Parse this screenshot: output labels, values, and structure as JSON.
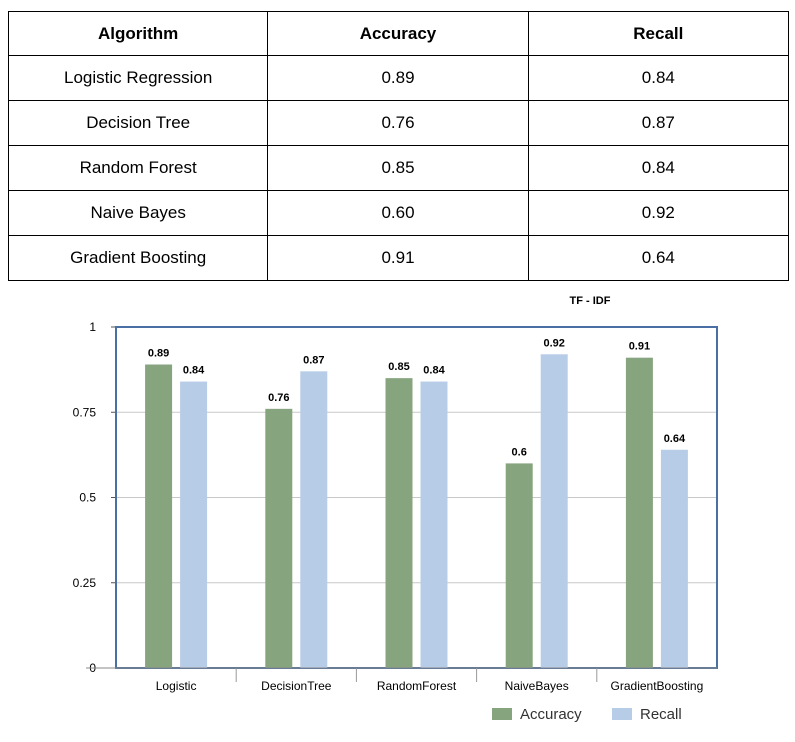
{
  "table": {
    "headers": [
      "Algorithm",
      "Accuracy",
      "Recall"
    ],
    "rows": [
      [
        "Logistic Regression",
        "0.89",
        "0.84"
      ],
      [
        "Decision Tree",
        "0.76",
        "0.87"
      ],
      [
        "Random Forest",
        "0.85",
        "0.84"
      ],
      [
        "Naive Bayes",
        "0.60",
        "0.92"
      ],
      [
        "Gradient Boosting",
        "0.91",
        "0.64"
      ]
    ]
  },
  "chart_data": {
    "type": "bar",
    "title": "TF - IDF",
    "categories": [
      "Logistic",
      "DecisionTree",
      "RandomForest",
      "NaiveBayes",
      "GradientBoosting"
    ],
    "series": [
      {
        "name": "Accuracy",
        "values": [
          0.89,
          0.76,
          0.85,
          0.6,
          0.91
        ],
        "labels": [
          "0.89",
          "0.76",
          "0.85",
          "0.6",
          "0.91"
        ],
        "color": "#86a47e"
      },
      {
        "name": "Recall",
        "values": [
          0.84,
          0.87,
          0.84,
          0.92,
          0.64
        ],
        "labels": [
          "0.84",
          "0.87",
          "0.84",
          "0.92",
          "0.64"
        ],
        "color": "#b7cce7"
      }
    ],
    "yticks": [
      {
        "value": 0,
        "label": "0"
      },
      {
        "value": 0.25,
        "label": "0.25"
      },
      {
        "value": 0.5,
        "label": "0.5"
      },
      {
        "value": 0.75,
        "label": "0.75"
      },
      {
        "value": 1,
        "label": "1"
      }
    ],
    "ylim": [
      0,
      1
    ],
    "grid": true,
    "legend_position": "bottom-right",
    "frame_color": "#4a6fa5",
    "grid_color": "#c8c8c8"
  }
}
